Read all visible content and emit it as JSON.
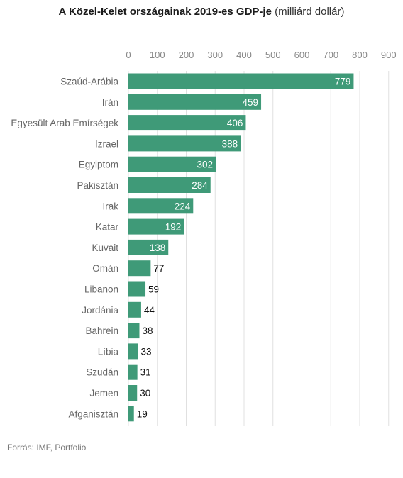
{
  "title": "A Közel-Kelet országainak 2019-es GDP-je",
  "subtitle": "(milliárd dollár)",
  "source": "Forrás: IMF, Portfolio",
  "colors": {
    "bar": "#3f9a78",
    "grid": "#e0e0e0",
    "tick": "#888888",
    "label": "#666666",
    "value_inside": "#ffffff",
    "value_outside": "#111111"
  },
  "chart_data": {
    "type": "bar",
    "orientation": "horizontal",
    "title": "A Közel-Kelet országainak 2019-es GDP-je",
    "subtitle": "(milliárd dollár)",
    "xlabel": "",
    "ylabel": "",
    "xlim": [
      0,
      900
    ],
    "ticks": [
      0,
      100,
      200,
      300,
      400,
      500,
      600,
      700,
      800,
      900
    ],
    "grid": true,
    "axis_position": "top",
    "categories": [
      "Szaúd-Arábia",
      "Irán",
      "Egyesült Arab Emírségek",
      "Izrael",
      "Egyiptom",
      "Pakisztán",
      "Irak",
      "Katar",
      "Kuvait",
      "Omán",
      "Libanon",
      "Jordánia",
      "Bahrein",
      "Líbia",
      "Szudán",
      "Jemen",
      "Afganisztán"
    ],
    "values": [
      779,
      459,
      406,
      388,
      302,
      284,
      224,
      192,
      138,
      77,
      59,
      44,
      38,
      33,
      31,
      30,
      19
    ]
  }
}
